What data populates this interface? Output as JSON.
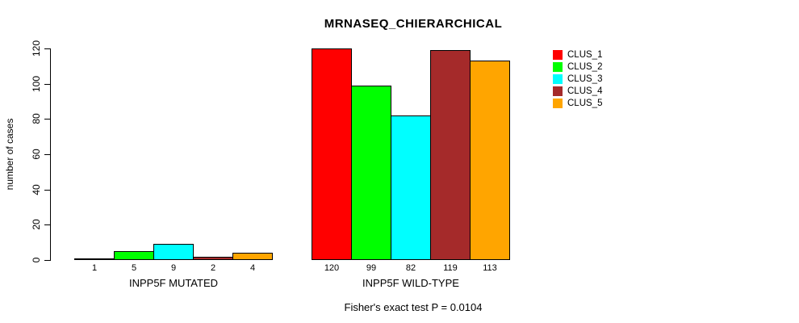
{
  "title": "MRNASEQ_CHIERARCHICAL",
  "annotation": "Fisher's exact test P = 0.0104",
  "y_axis": {
    "label": "number of cases",
    "tick_labels": [
      "0",
      "20",
      "40",
      "60",
      "80",
      "100",
      "120"
    ]
  },
  "chart_data": {
    "type": "bar",
    "title": "MRNASEQ_CHIERARCHICAL",
    "xlabel": "",
    "ylabel": "number of cases",
    "ylim": [
      0,
      120
    ],
    "yticks": [
      0,
      20,
      40,
      60,
      80,
      100,
      120
    ],
    "grid": false,
    "legend_position": "right",
    "bar_borders": "#000000",
    "categories": [
      "INPP5F MUTATED",
      "INPP5F WILD-TYPE"
    ],
    "series": [
      {
        "name": "CLUS_1",
        "color": "#ff0000",
        "values": [
          1,
          120
        ]
      },
      {
        "name": "CLUS_2",
        "color": "#00ff00",
        "values": [
          5,
          99
        ]
      },
      {
        "name": "CLUS_3",
        "color": "#00ffff",
        "values": [
          9,
          82
        ]
      },
      {
        "name": "CLUS_4",
        "color": "#a52a2a",
        "values": [
          2,
          119
        ]
      },
      {
        "name": "CLUS_5",
        "color": "#ffa500",
        "values": [
          4,
          113
        ]
      }
    ],
    "bar_value_labels": {
      "INPP5F MUTATED": [
        1,
        5,
        9,
        2,
        4
      ],
      "INPP5F WILD-TYPE": [
        120,
        99,
        82,
        119,
        113
      ]
    },
    "annotation": "Fisher's exact test P = 0.0104"
  },
  "legend": {
    "items": [
      {
        "label": "CLUS_1",
        "color": "#ff0000"
      },
      {
        "label": "CLUS_2",
        "color": "#00ff00"
      },
      {
        "label": "CLUS_3",
        "color": "#00ffff"
      },
      {
        "label": "CLUS_4",
        "color": "#a52a2a"
      },
      {
        "label": "CLUS_5",
        "color": "#ffa500"
      }
    ]
  }
}
